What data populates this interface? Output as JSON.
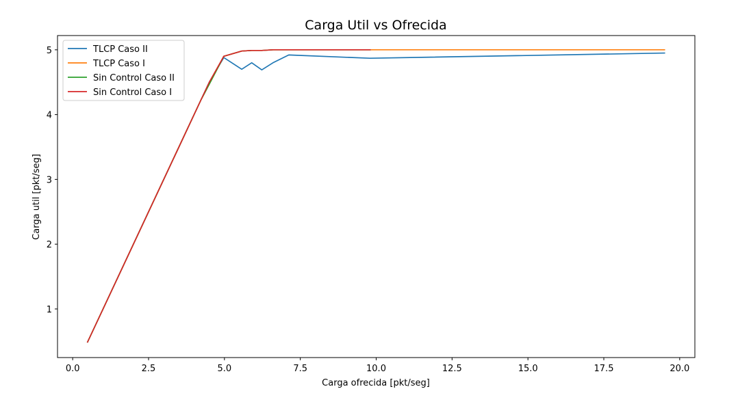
{
  "chart_data": {
    "type": "line",
    "title": "Carga Util vs Ofrecida",
    "xlabel": "Carga ofrecida [pkt/seg]",
    "ylabel": "Carga util [pkt/seg]",
    "xlim": [
      -0.5,
      20.5
    ],
    "ylim": [
      0.25,
      5.22
    ],
    "xticks": [
      0.0,
      2.5,
      5.0,
      7.5,
      10.0,
      12.5,
      15.0,
      17.5,
      20.0
    ],
    "xtick_labels": [
      "0.0",
      "2.5",
      "5.0",
      "7.5",
      "10.0",
      "12.5",
      "15.0",
      "17.5",
      "20.0"
    ],
    "yticks": [
      1,
      2,
      3,
      4,
      5
    ],
    "ytick_labels": [
      "1",
      "2",
      "3",
      "4",
      "5"
    ],
    "grid": false,
    "legend_position": "top-left",
    "series": [
      {
        "name": "TLCP Caso II",
        "color": "#1f77b4",
        "x": [
          0.49,
          4.23,
          4.5,
          4.98,
          5.57,
          5.9,
          6.23,
          6.6,
          7.12,
          9.8,
          19.5
        ],
        "y": [
          0.49,
          4.23,
          4.5,
          4.88,
          4.7,
          4.8,
          4.69,
          4.8,
          4.92,
          4.87,
          4.95
        ]
      },
      {
        "name": "TLCP Caso I",
        "color": "#ff7f0e",
        "x": [
          0.49,
          4.23,
          4.5,
          4.98,
          5.57,
          5.9,
          6.23,
          6.6,
          7.12,
          9.8,
          19.5
        ],
        "y": [
          0.49,
          4.23,
          4.47,
          4.9,
          4.98,
          4.99,
          4.99,
          5.0,
          5.0,
          5.0,
          5.0
        ]
      },
      {
        "name": "Sin Control Caso II",
        "color": "#2ca02c",
        "x": [
          0.49,
          4.23,
          4.5,
          4.98,
          5.57,
          5.9,
          6.23,
          6.6,
          7.12,
          9.8
        ],
        "y": [
          0.49,
          4.23,
          4.47,
          4.9,
          4.98,
          4.99,
          4.99,
          5.0,
          5.0,
          5.0
        ]
      },
      {
        "name": "Sin Control Caso I",
        "color": "#d62728",
        "x": [
          0.49,
          4.23,
          4.5,
          4.98,
          5.57,
          5.9,
          6.23,
          6.6,
          7.12,
          9.8
        ],
        "y": [
          0.49,
          4.23,
          4.5,
          4.9,
          4.98,
          4.99,
          4.99,
          5.0,
          5.0,
          5.0
        ]
      }
    ]
  }
}
